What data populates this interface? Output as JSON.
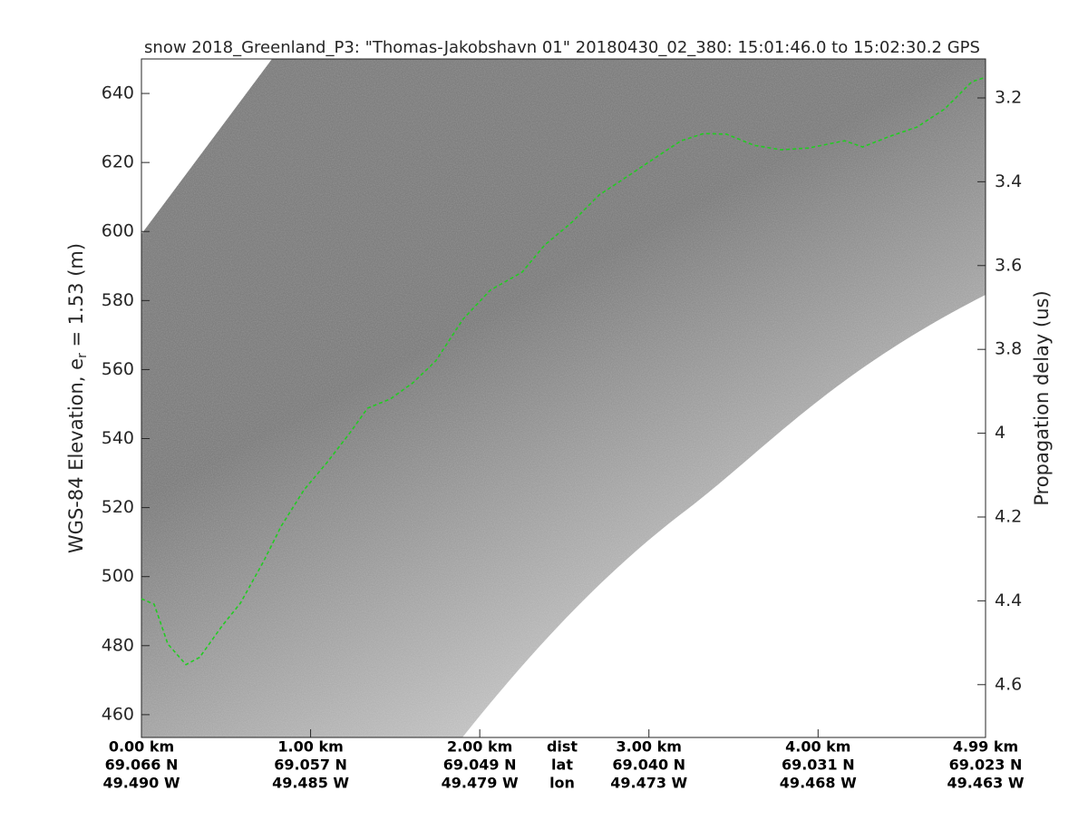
{
  "chart_data": {
    "type": "echogram",
    "title": "snow 2018_Greenland_P3: \"Thomas-Jakobshavn 01\"  20180430_02_380: 15:01:46.0 to 15:02:30.2 GPS",
    "ylabel": "WGS-84 Elevation, e",
    "ylabel_sub": "r",
    "ylabel_end": " = 1.53 (m)",
    "y2label": "Propagation delay (us)",
    "xlim": [
      0,
      4.99
    ],
    "xticks": [
      {
        "value": 0,
        "label": "0.00 km"
      },
      {
        "value": 1,
        "label": "1.00 km"
      },
      {
        "value": 2,
        "label": "2.00 km"
      },
      {
        "value": 3,
        "label": "3.00 km"
      },
      {
        "value": 4,
        "label": "4.00 km"
      },
      {
        "value": 4.99,
        "label": "4.99 km"
      }
    ],
    "lat_labels": [
      "69.066 N",
      "69.057 N",
      "69.049 N",
      "69.040 N",
      "69.031 N",
      "69.023 N"
    ],
    "lon_labels": [
      "49.490 W",
      "49.485 W",
      "49.479 W",
      "49.473 W",
      "49.468 W",
      "49.463 W"
    ],
    "row_labels": [
      "dist",
      "lat",
      "lon"
    ],
    "ylim": [
      453.4,
      650
    ],
    "yticks": [
      460,
      480,
      500,
      520,
      540,
      560,
      580,
      600,
      620,
      640
    ],
    "y2lim": [
      3.107,
      4.726
    ],
    "y2_inverted": true,
    "y2ticks": [
      3.2,
      3.4,
      3.6,
      3.8,
      4,
      4.2,
      4.4,
      4.6
    ],
    "series": [
      {
        "color": "#22cc22",
        "x": [
          0,
          0.075,
          0.156,
          0.263,
          0.344,
          0.478,
          0.585,
          0.72,
          0.827,
          0.962,
          1.096,
          1.23,
          1.337,
          1.472,
          1.606,
          1.74,
          1.901,
          2.062,
          2.25,
          2.384,
          2.545,
          2.706,
          2.868,
          3.029,
          3.19,
          3.324,
          3.459,
          3.62,
          3.781,
          3.942,
          4.157,
          4.264,
          4.425,
          4.586,
          4.748,
          4.909,
          4.99
        ],
        "values": [
          493.6,
          492,
          480.5,
          474.5,
          476.6,
          485.8,
          492.3,
          504.2,
          514.7,
          525.2,
          533,
          541.5,
          548.8,
          551.5,
          556.2,
          562.5,
          574.6,
          583,
          588.2,
          596.1,
          602.7,
          610.6,
          615.8,
          621.1,
          626.3,
          628.4,
          628.2,
          625,
          623.7,
          624.2,
          626.3,
          624.5,
          627.6,
          630.3,
          635.5,
          643.4,
          644.7
        ]
      }
    ]
  }
}
